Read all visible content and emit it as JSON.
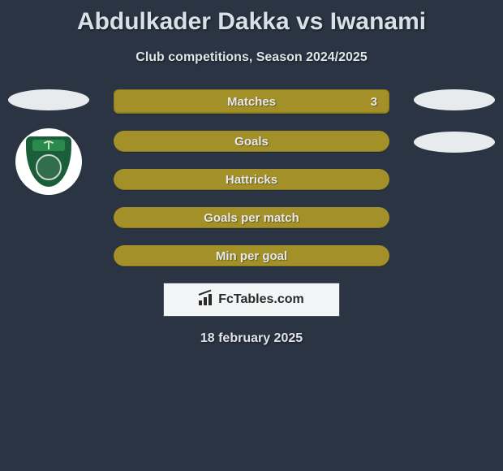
{
  "title": "Abdulkader Dakka vs Iwanami",
  "subtitle": "Club competitions, Season 2024/2025",
  "stats": [
    {
      "label": "Matches",
      "value": "3"
    },
    {
      "label": "Goals",
      "value": ""
    },
    {
      "label": "Hattricks",
      "value": ""
    },
    {
      "label": "Goals per match",
      "value": ""
    },
    {
      "label": "Min per goal",
      "value": ""
    }
  ],
  "watermark": "FcTables.com",
  "date": "18 february 2025",
  "colors": {
    "background": "#2a3442",
    "bar": "#a39028",
    "oval": "#e8ebee",
    "shield": "#1a5e3a"
  }
}
